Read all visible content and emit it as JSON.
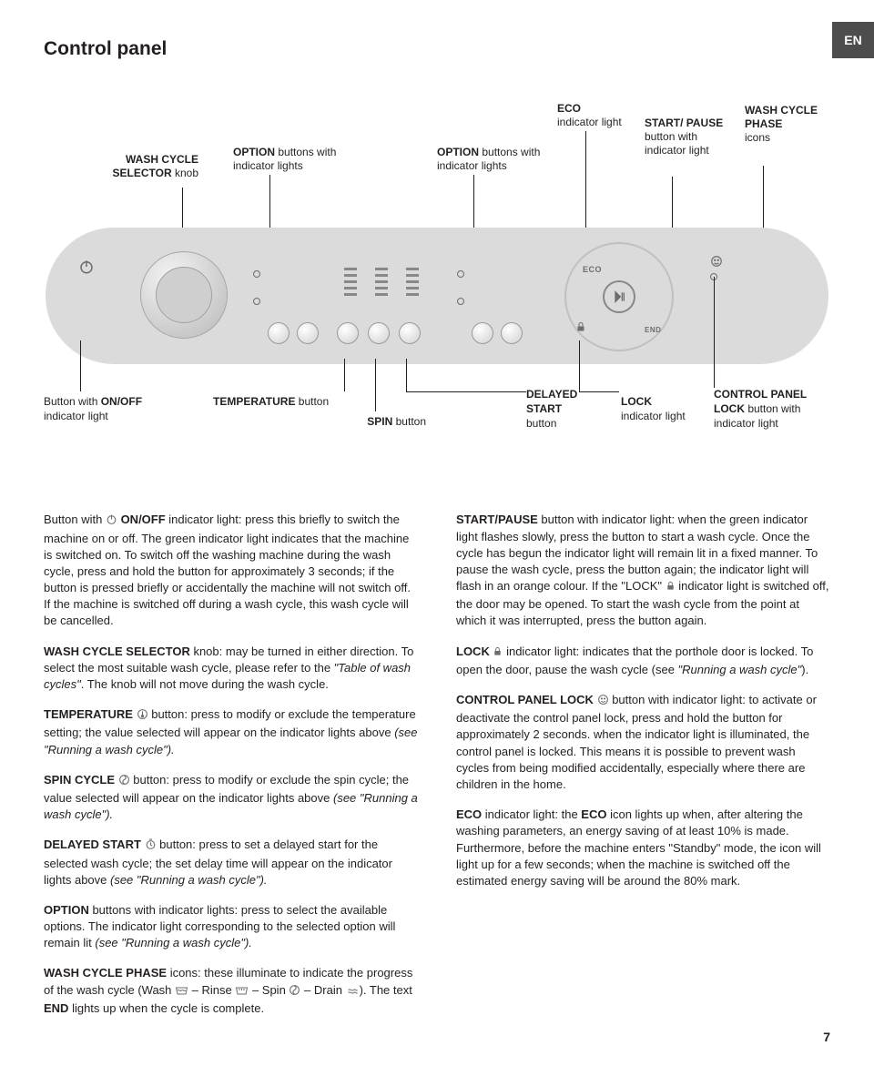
{
  "lang": "EN",
  "title": "Control panel",
  "upper_labels": {
    "selector": {
      "bold": "WASH CYCLE SELECTOR",
      "plain": " knob"
    },
    "option1": {
      "bold": "OPTION",
      "plain": " buttons with indicator lights"
    },
    "option2": {
      "bold": "OPTION",
      "plain": " buttons with indicator lights"
    },
    "eco": {
      "bold": "ECO",
      "plain": " indicator light"
    },
    "startpause": {
      "bold": "START/ PAUSE",
      "plain": " button with indicator light"
    },
    "phase": {
      "bold": "WASH CYCLE PHASE",
      "plain": " icons"
    }
  },
  "lower_labels": {
    "onoff": {
      "pre": "Button with ",
      "bold": "ON/OFF",
      "plain": " indicator light"
    },
    "temp": {
      "bold": "TEMPERATURE",
      "plain": " button"
    },
    "spin": {
      "bold": "SPIN",
      "plain": " button"
    },
    "delayed": {
      "bold": "DELAYED START",
      "plain": " button"
    },
    "lock": {
      "bold": "LOCK",
      "plain": " indicator light"
    },
    "cplock": {
      "bold": "CONTROL PANEL LOCK",
      "plain": " button with indicator light"
    }
  },
  "panel": {
    "eco_text": "ECO",
    "end_text": "END"
  },
  "body_left": [
    {
      "parts": [
        {
          "t": "Button with "
        },
        {
          "icon": "power"
        },
        {
          "t": " "
        },
        {
          "b": "ON/OFF"
        },
        {
          "t": " indicator light: press this briefly to switch the machine on or off. The green indicator light indicates that the machine is switched on. To switch off the washing machine during the wash cycle, press and hold the button for approximately 3 seconds; if the button is pressed briefly or accidentally the machine will not switch off. If the machine is switched off during a wash cycle, this wash cycle will be cancelled."
        }
      ]
    },
    {
      "parts": [
        {
          "b": "WASH CYCLE SELECTOR"
        },
        {
          "t": " knob: may be turned in either direction. To select the most suitable wash cycle, please refer to the "
        },
        {
          "i": "\"Table of wash cycles\""
        },
        {
          "t": ". The knob will not move during the wash cycle."
        }
      ]
    },
    {
      "parts": [
        {
          "b": "TEMPERATURE"
        },
        {
          "t": " "
        },
        {
          "icon": "temp"
        },
        {
          "t": " button: press to modify or exclude the temperature setting; the value selected will appear on the indicator lights above "
        },
        {
          "i": "(see \"Running a wash cycle\")."
        }
      ]
    },
    {
      "parts": [
        {
          "b": "SPIN CYCLE"
        },
        {
          "t": " "
        },
        {
          "icon": "spin"
        },
        {
          "t": " button: press to modify or exclude the spin cycle; the value selected will appear on the indicator lights above "
        },
        {
          "i": "(see \"Running a wash cycle\")."
        }
      ]
    },
    {
      "parts": [
        {
          "b": "DELAYED START"
        },
        {
          "t": " "
        },
        {
          "icon": "delay"
        },
        {
          "t": " button: press to set a delayed start for the selected wash cycle; the set delay time will appear on the indicator lights above "
        },
        {
          "i": "(see \"Running a wash cycle\")."
        }
      ]
    },
    {
      "parts": [
        {
          "b": "OPTION"
        },
        {
          "t": " buttons with indicator lights: press to select the available options. The indicator light corresponding to the selected option will remain lit "
        },
        {
          "i": "(see \"Running a wash cycle\")."
        }
      ]
    },
    {
      "parts": [
        {
          "b": "WASH CYCLE PHASE"
        },
        {
          "t": " icons: these illuminate to indicate the progress of the wash cycle (Wash "
        },
        {
          "icon": "wash"
        },
        {
          "t": " – Rinse "
        },
        {
          "icon": "rinse"
        },
        {
          "t": " – Spin "
        },
        {
          "icon": "spin"
        },
        {
          "t": " – Drain "
        },
        {
          "icon": "drain"
        },
        {
          "t": "). The text "
        },
        {
          "b": "END"
        },
        {
          "t": " lights up when the cycle is complete."
        }
      ]
    }
  ],
  "body_right": [
    {
      "parts": [
        {
          "b": "START/PAUSE"
        },
        {
          "t": " button with indicator light: when the green indicator light flashes slowly, press the button to start a wash cycle. Once the cycle has begun the indicator light will remain lit in a fixed manner. To pause the wash cycle, press the button again; the indicator light will flash in an orange colour. If the \"LOCK\" "
        },
        {
          "icon": "lock"
        },
        {
          "t": " indicator light is switched off, the door may be opened. To start the wash cycle from the point at which it was interrupted, press the button again."
        }
      ]
    },
    {
      "parts": [
        {
          "b": "LOCK"
        },
        {
          "t": " "
        },
        {
          "icon": "lock"
        },
        {
          "t": " indicator light: indicates that the porthole door is locked. To open the door, pause the wash cycle (see "
        },
        {
          "i": "\"Running a wash cycle\""
        },
        {
          "t": ")."
        }
      ]
    },
    {
      "parts": [
        {
          "b": "CONTROL PANEL LOCK"
        },
        {
          "t": " "
        },
        {
          "icon": "childlock"
        },
        {
          "t": " button with indicator light: to activate or deactivate the control panel lock, press and hold the button for approximately 2 seconds. when the indicator light is illuminated, the control panel is locked. This means it is possible to prevent wash cycles from being modified accidentally, especially where there are children in the home."
        }
      ]
    },
    {
      "parts": [
        {
          "b": "ECO"
        },
        {
          "t": " indicator light: the "
        },
        {
          "b": "ECO"
        },
        {
          "t": " icon lights up when, after altering the washing parameters, an energy saving of at least 10% is made. Furthermore, before the machine enters \"Standby\" mode, the icon will light up for a few seconds; when the machine is switched off the estimated energy saving will be around the 80% mark."
        }
      ]
    }
  ],
  "pagenum": "7",
  "colors": {
    "panel_bg": "#dbdbdb",
    "icon_gray": "#6d6d6d"
  }
}
